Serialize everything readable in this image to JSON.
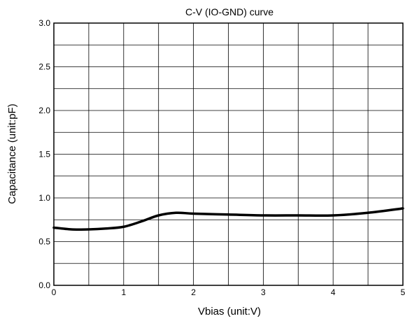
{
  "chart_data": {
    "type": "line",
    "title": "C-V (IO-GND) curve",
    "xlabel": "Vbias (unit:V)",
    "ylabel": "Capacitance (unit:pF)",
    "xlim": [
      0,
      5
    ],
    "ylim": [
      0.0,
      3.0
    ],
    "x_ticks": [
      "0",
      "1",
      "2",
      "3",
      "4",
      "5"
    ],
    "y_ticks": [
      "0.0",
      "0.5",
      "1.0",
      "1.5",
      "2.0",
      "2.5",
      "3.0"
    ],
    "grid": true,
    "series": [
      {
        "x": [
          0,
          0.25,
          0.5,
          0.75,
          1.0,
          1.25,
          1.5,
          1.75,
          2.0,
          2.5,
          3.0,
          3.5,
          4.0,
          4.5,
          5.0
        ],
        "y": [
          0.66,
          0.64,
          0.64,
          0.65,
          0.67,
          0.73,
          0.8,
          0.83,
          0.82,
          0.81,
          0.8,
          0.8,
          0.8,
          0.83,
          0.88
        ]
      }
    ],
    "line_color": "#000000",
    "grid_color": "#000000"
  }
}
